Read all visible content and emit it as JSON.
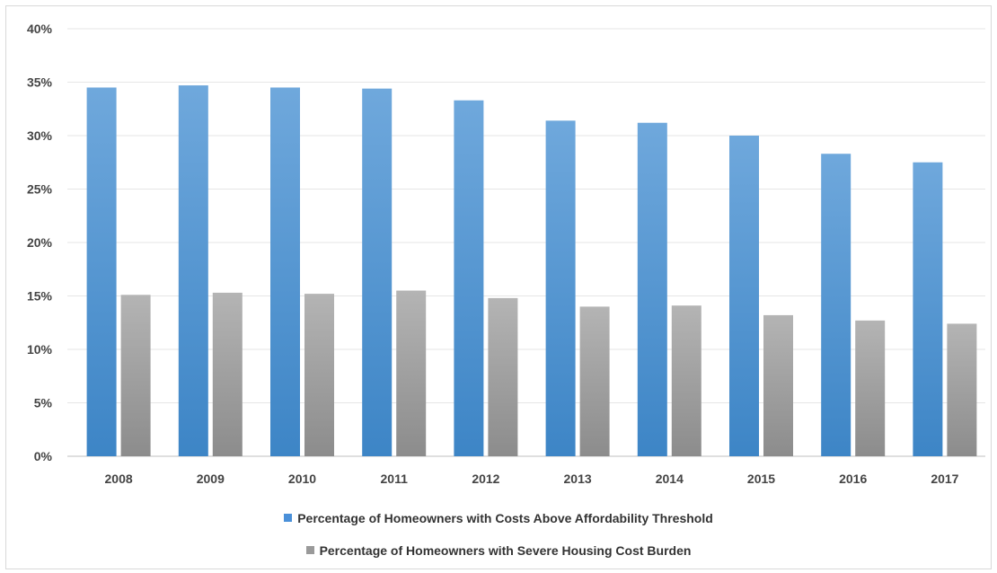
{
  "chart_data": {
    "type": "bar",
    "title": "",
    "xlabel": "",
    "ylabel": "",
    "categories": [
      "2008",
      "2009",
      "2010",
      "2011",
      "2012",
      "2013",
      "2014",
      "2015",
      "2016",
      "2017"
    ],
    "series": [
      {
        "name": "Percentage of Homeowners with Costs Above Affordability Threshold",
        "color": "#5b9bd5",
        "values": [
          34.5,
          34.7,
          34.5,
          34.4,
          33.3,
          31.4,
          31.2,
          30.0,
          28.3,
          27.5
        ]
      },
      {
        "name": "Percentage of Homeowners with Severe Housing Cost Burden",
        "color": "#a5a5a5",
        "values": [
          15.1,
          15.3,
          15.2,
          15.5,
          14.8,
          14.0,
          14.1,
          13.2,
          12.7,
          12.4
        ]
      }
    ],
    "ylim": [
      0,
      40
    ],
    "yticks": [
      "0%",
      "5%",
      "10%",
      "15%",
      "20%",
      "25%",
      "30%",
      "35%",
      "40%"
    ],
    "ytick_values": [
      0,
      5,
      10,
      15,
      20,
      25,
      30,
      35,
      40
    ],
    "grid": true,
    "legend_position": "bottom"
  }
}
